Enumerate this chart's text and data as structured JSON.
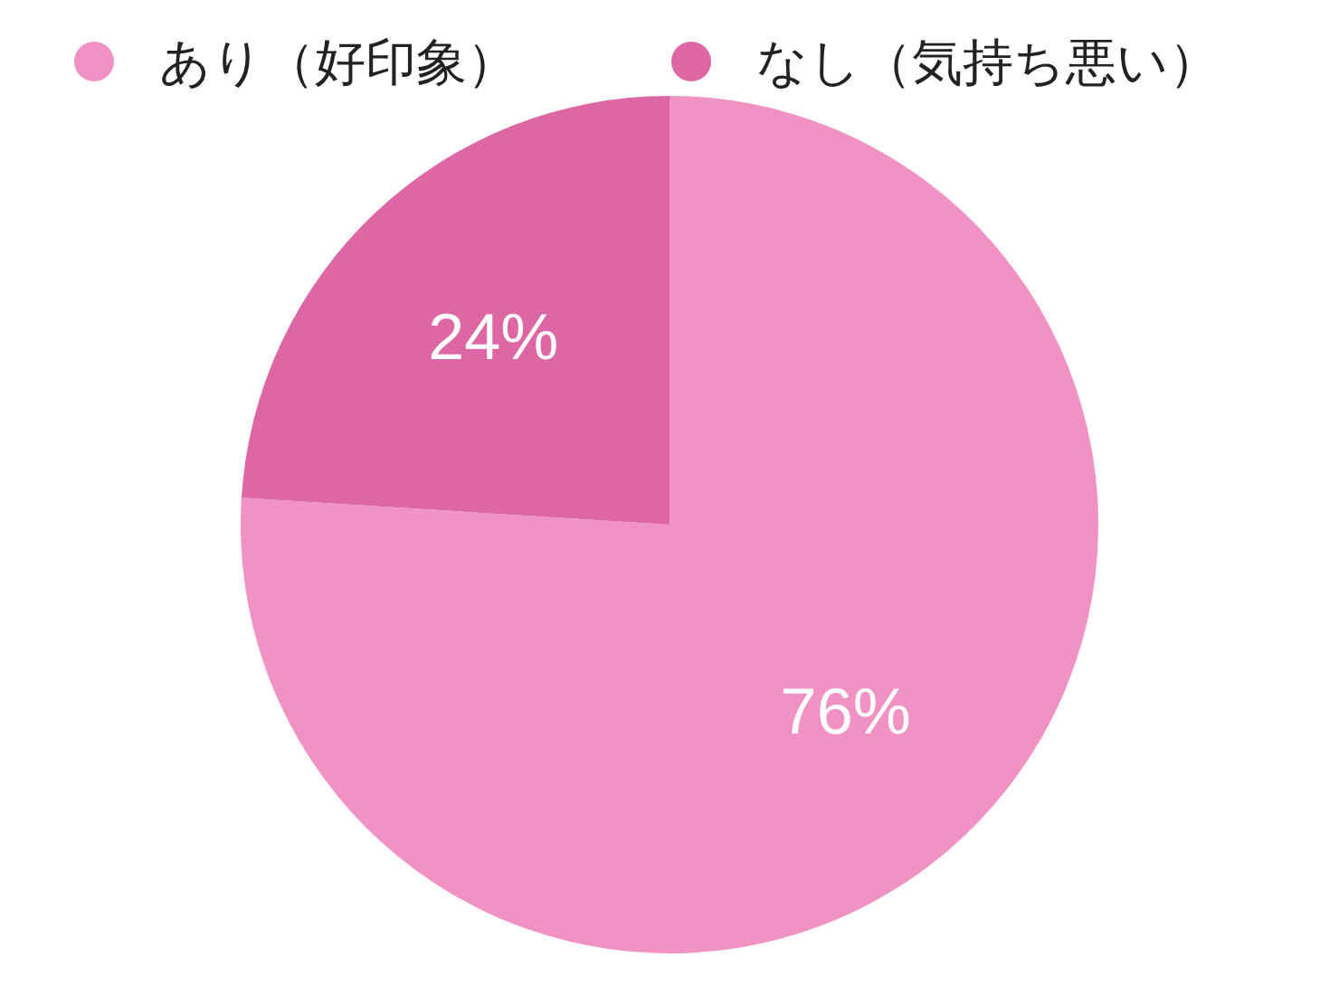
{
  "chart_data": {
    "type": "pie",
    "categories": [
      "あり（好印象）",
      "なし（気持ち悪い）"
    ],
    "values": [
      76,
      24
    ],
    "colors": [
      "#f192c4",
      "#dd67a5"
    ],
    "value_labels": [
      "76%",
      "24%"
    ],
    "legend": "top"
  }
}
